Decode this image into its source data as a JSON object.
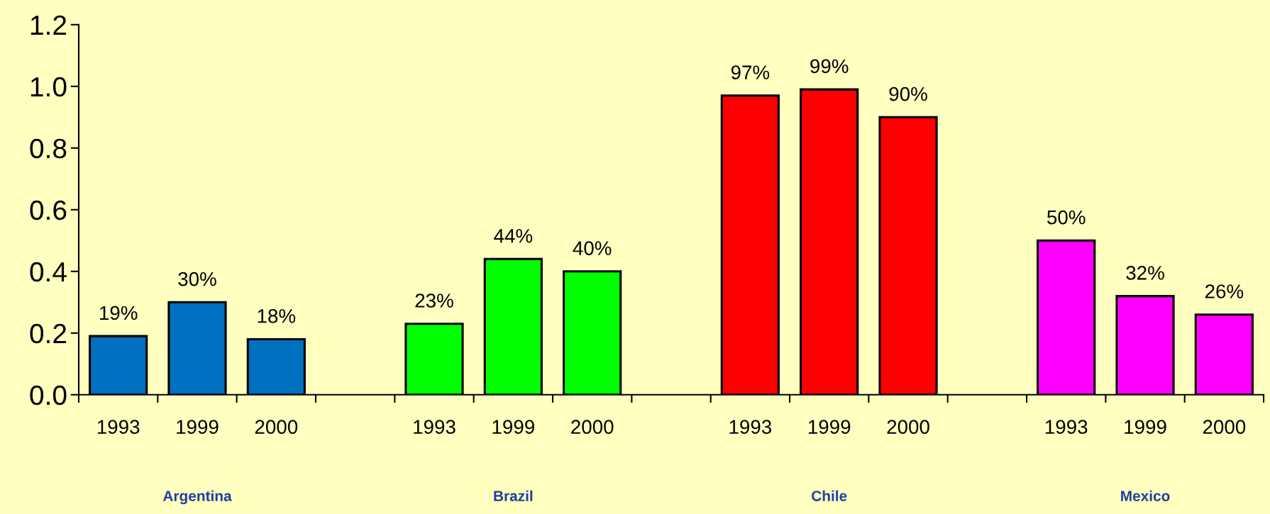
{
  "chart_data": {
    "type": "bar",
    "categories": [
      "1993",
      "1999",
      "2000",
      null,
      "1993",
      "1999",
      "2000",
      null,
      "1993",
      "1999",
      "2000",
      null,
      "1993",
      "1999",
      "2000"
    ],
    "values": [
      0.19,
      0.3,
      0.18,
      null,
      0.23,
      0.44,
      0.4,
      null,
      0.97,
      0.99,
      0.9,
      null,
      0.5,
      0.32,
      0.26
    ],
    "value_labels": [
      "19%",
      "30%",
      "18%",
      null,
      "23%",
      "44%",
      "40%",
      null,
      "97%",
      "99%",
      "90%",
      null,
      "50%",
      "32%",
      "26%"
    ],
    "colors": [
      "#0070c0",
      "#0070c0",
      "#0070c0",
      null,
      "#00ff00",
      "#00ff00",
      "#00ff00",
      null,
      "#ff0000",
      "#ff0000",
      "#ff0000",
      null,
      "#ff00ff",
      "#ff00ff",
      "#ff00ff"
    ],
    "ylim": [
      0,
      1.2
    ],
    "yticks": [
      {
        "value": 0,
        "label": "0.0"
      },
      {
        "value": 0.2,
        "label": "0.2"
      },
      {
        "value": 0.4,
        "label": "0.4"
      },
      {
        "value": 0.6,
        "label": "0.6"
      },
      {
        "value": 0.8,
        "label": "0.8"
      },
      {
        "value": 1.0,
        "label": "1.0"
      },
      {
        "value": 1.2,
        "label": "1.2"
      }
    ],
    "annotations": [
      "Argentina",
      "Brazil",
      "Chile",
      "Mexico"
    ],
    "grid": false
  }
}
